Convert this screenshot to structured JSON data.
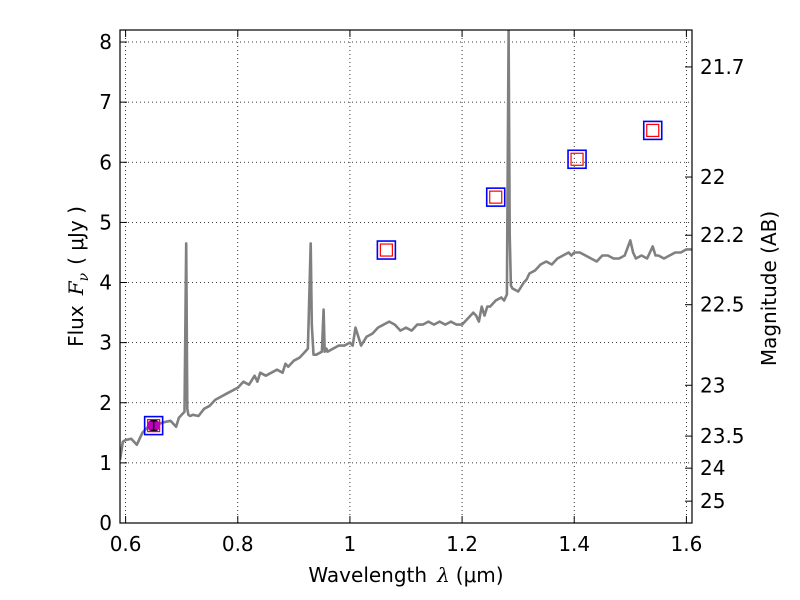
{
  "chart_data": {
    "type": "line",
    "xlabel": {
      "prefix": "Wavelength",
      "symbol": "λ",
      "unit": "(μm)"
    },
    "ylabel": {
      "prefix": "Flux",
      "symbol": "F",
      "subscript": "ν",
      "unit": "( μJy )"
    },
    "ylabel_right": "Magnitude (AB)",
    "xlim": [
      0.59,
      1.61
    ],
    "ylim": [
      0,
      8.2
    ],
    "grid": true,
    "x_ticks": [
      {
        "value": 0.6,
        "label": "0.6"
      },
      {
        "value": 0.8,
        "label": "0.8"
      },
      {
        "value": 1.0,
        "label": "1"
      },
      {
        "value": 1.2,
        "label": "1.2"
      },
      {
        "value": 1.4,
        "label": "1.4"
      },
      {
        "value": 1.6,
        "label": "1.6"
      }
    ],
    "y_ticks": [
      {
        "value": 0,
        "label": "0"
      },
      {
        "value": 1,
        "label": "1"
      },
      {
        "value": 2,
        "label": "2"
      },
      {
        "value": 3,
        "label": "3"
      },
      {
        "value": 4,
        "label": "4"
      },
      {
        "value": 5,
        "label": "5"
      },
      {
        "value": 6,
        "label": "6"
      },
      {
        "value": 7,
        "label": "7"
      },
      {
        "value": 8,
        "label": "8"
      }
    ],
    "mag_ticks": [
      {
        "value": 21.7,
        "label": "21.7"
      },
      {
        "value": 22.0,
        "label": "22"
      },
      {
        "value": 22.2,
        "label": "22.2"
      },
      {
        "value": 22.5,
        "label": "22.5"
      },
      {
        "value": 23.0,
        "label": "23"
      },
      {
        "value": 23.5,
        "label": "23.5"
      },
      {
        "value": 24.0,
        "label": "24"
      },
      {
        "value": 25.0,
        "label": "25"
      }
    ],
    "spectrum": {
      "color": "#808080",
      "x": [
        0.59,
        0.595,
        0.6,
        0.61,
        0.62,
        0.63,
        0.635,
        0.64,
        0.65,
        0.66,
        0.67,
        0.68,
        0.69,
        0.695,
        0.7,
        0.705,
        0.708,
        0.71,
        0.712,
        0.715,
        0.72,
        0.73,
        0.74,
        0.75,
        0.76,
        0.77,
        0.78,
        0.79,
        0.8,
        0.81,
        0.82,
        0.83,
        0.835,
        0.84,
        0.85,
        0.86,
        0.87,
        0.88,
        0.885,
        0.89,
        0.9,
        0.91,
        0.915,
        0.92,
        0.925,
        0.93,
        0.932,
        0.935,
        0.94,
        0.95,
        0.953,
        0.955,
        0.958,
        0.96,
        0.97,
        0.98,
        0.99,
        1.0,
        1.005,
        1.01,
        1.02,
        1.03,
        1.04,
        1.05,
        1.06,
        1.07,
        1.08,
        1.09,
        1.1,
        1.11,
        1.12,
        1.13,
        1.14,
        1.15,
        1.16,
        1.17,
        1.18,
        1.19,
        1.2,
        1.21,
        1.22,
        1.225,
        1.23,
        1.235,
        1.24,
        1.245,
        1.25,
        1.255,
        1.26,
        1.27,
        1.275,
        1.28,
        1.283,
        1.285,
        1.287,
        1.29,
        1.3,
        1.31,
        1.315,
        1.32,
        1.33,
        1.34,
        1.35,
        1.36,
        1.37,
        1.38,
        1.39,
        1.395,
        1.4,
        1.41,
        1.42,
        1.43,
        1.44,
        1.45,
        1.46,
        1.47,
        1.48,
        1.49,
        1.5,
        1.505,
        1.51,
        1.52,
        1.53,
        1.535,
        1.54,
        1.545,
        1.55,
        1.56,
        1.57,
        1.58,
        1.59,
        1.6,
        1.61
      ],
      "y": [
        1.05,
        1.35,
        1.38,
        1.4,
        1.3,
        1.5,
        1.55,
        1.6,
        1.62,
        1.65,
        1.68,
        1.7,
        1.6,
        1.75,
        1.8,
        1.85,
        4.65,
        1.9,
        1.8,
        1.78,
        1.8,
        1.78,
        1.9,
        1.95,
        2.05,
        2.1,
        2.15,
        2.2,
        2.25,
        2.35,
        2.3,
        2.45,
        2.35,
        2.5,
        2.45,
        2.5,
        2.55,
        2.5,
        2.65,
        2.6,
        2.7,
        2.75,
        2.8,
        2.85,
        2.9,
        4.65,
        3.3,
        2.8,
        2.8,
        2.85,
        3.55,
        2.85,
        2.9,
        2.85,
        2.9,
        2.95,
        2.95,
        3.0,
        2.95,
        3.25,
        2.95,
        3.1,
        3.15,
        3.25,
        3.3,
        3.35,
        3.3,
        3.2,
        3.25,
        3.2,
        3.3,
        3.3,
        3.35,
        3.3,
        3.35,
        3.3,
        3.35,
        3.3,
        3.3,
        3.4,
        3.5,
        3.45,
        3.35,
        3.6,
        3.45,
        3.6,
        3.6,
        3.65,
        3.7,
        3.75,
        3.7,
        3.8,
        8.2,
        4.8,
        3.95,
        3.9,
        3.85,
        4.0,
        4.05,
        4.15,
        4.2,
        4.3,
        4.35,
        4.3,
        4.4,
        4.45,
        4.5,
        4.45,
        4.5,
        4.5,
        4.45,
        4.4,
        4.35,
        4.45,
        4.45,
        4.4,
        4.4,
        4.45,
        4.7,
        4.5,
        4.4,
        4.45,
        4.4,
        4.5,
        4.6,
        4.45,
        4.45,
        4.4,
        4.45,
        4.5,
        4.5,
        4.55,
        4.55
      ]
    },
    "photometry": [
      {
        "x": 0.65,
        "y": 1.62,
        "err": 0.08
      },
      {
        "x": 1.065,
        "y": 4.54
      },
      {
        "x": 1.26,
        "y": 5.42
      },
      {
        "x": 1.405,
        "y": 6.05
      },
      {
        "x": 1.54,
        "y": 6.53
      }
    ],
    "colors": {
      "outer_box": "#0000ff",
      "inner_box": "#ff0000",
      "detection_marker": "#bf00bf",
      "errorbar": "#000000",
      "grid": "#000000"
    }
  }
}
